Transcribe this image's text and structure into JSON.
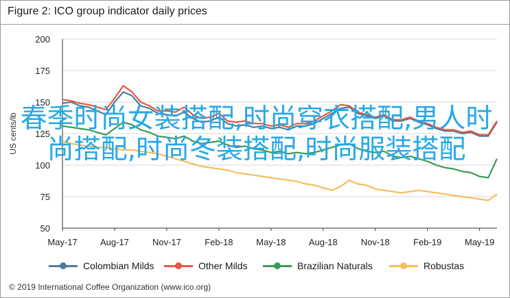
{
  "chart_data": {
    "type": "line",
    "title": "Figure 2: ICO group indicator daily prices",
    "ylabel": "US cents/lb",
    "xlabel": "",
    "ylim": [
      50,
      200
    ],
    "yticks": [
      50,
      75,
      100,
      125,
      150,
      175,
      200
    ],
    "x_ticks": [
      "May-17",
      "Aug-17",
      "Nov-17",
      "Feb-18",
      "May-18",
      "Aug-18",
      "Nov-18",
      "Feb-19",
      "May-19"
    ],
    "grid": true,
    "legend_position": "bottom",
    "series": [
      {
        "name": "Colombian Milds",
        "color": "#4a7ca3",
        "x": [
          0,
          0.5,
          1,
          1.5,
          2,
          2.5,
          3,
          3.5,
          4,
          4.5,
          5,
          5.5,
          6,
          6.5,
          7,
          7.5,
          8,
          8.5,
          9,
          9.5,
          10,
          10.5,
          11,
          11.5,
          12,
          12.5,
          13,
          13.5,
          14,
          14.5,
          15,
          15.5,
          16,
          16.5,
          17,
          17.5,
          18,
          18.5,
          19,
          19.5,
          20,
          20.5,
          21,
          21.5,
          22,
          22.5,
          23,
          23.5,
          24,
          24.5,
          25
        ],
        "values": [
          149,
          150,
          147,
          146,
          143,
          140,
          150,
          158,
          155,
          147,
          145,
          141,
          140,
          139,
          142,
          137,
          134,
          135,
          138,
          133,
          131,
          132,
          130,
          131,
          129,
          130,
          128,
          131,
          131,
          133,
          137,
          141,
          145,
          146,
          141,
          139,
          137,
          139,
          135,
          135,
          137,
          134,
          132,
          129,
          127,
          127,
          125,
          126,
          123,
          123,
          134
        ]
      },
      {
        "name": "Other Milds",
        "color": "#e8573f",
        "x": [
          0,
          0.5,
          1,
          1.5,
          2,
          2.5,
          3,
          3.5,
          4,
          4.5,
          5,
          5.5,
          6,
          6.5,
          7,
          7.5,
          8,
          8.5,
          9,
          9.5,
          10,
          10.5,
          11,
          11.5,
          12,
          12.5,
          13,
          13.5,
          14,
          14.5,
          15,
          15.5,
          16,
          16.5,
          17,
          17.5,
          18,
          18.5,
          19,
          19.5,
          20,
          20.5,
          21,
          21.5,
          22,
          22.5,
          23,
          23.5,
          24,
          24.5,
          25
        ],
        "values": [
          152,
          151,
          149,
          148,
          146,
          144,
          153,
          163,
          158,
          150,
          147,
          143,
          143,
          142,
          146,
          140,
          137,
          138,
          141,
          135,
          134,
          135,
          133,
          133,
          131,
          132,
          130,
          133,
          133,
          135,
          139,
          143,
          148,
          147,
          142,
          140,
          138,
          140,
          136,
          136,
          138,
          135,
          133,
          130,
          128,
          128,
          126,
          127,
          124,
          124,
          135
        ]
      },
      {
        "name": "Brazilian Naturals",
        "color": "#3a9b55",
        "x": [
          0,
          0.5,
          1,
          1.5,
          2,
          2.5,
          3,
          3.5,
          4,
          4.5,
          5,
          5.5,
          6,
          6.5,
          7,
          7.5,
          8,
          8.5,
          9,
          9.5,
          10,
          10.5,
          11,
          11.5,
          12,
          12.5,
          13,
          13.5,
          14,
          14.5,
          15,
          15.5,
          16,
          16.5,
          17,
          17.5,
          18,
          18.5,
          19,
          19.5,
          20,
          20.5,
          21,
          21.5,
          22,
          22.5,
          23,
          23.5,
          24,
          24.5,
          25
        ],
        "values": [
          131,
          130,
          129,
          128,
          126,
          124,
          129,
          134,
          132,
          128,
          126,
          123,
          122,
          121,
          123,
          119,
          117,
          118,
          119,
          116,
          114,
          115,
          113,
          112,
          110,
          111,
          109,
          110,
          109,
          110,
          112,
          114,
          116,
          117,
          113,
          111,
          110,
          111,
          107,
          106,
          107,
          105,
          103,
          100,
          98,
          97,
          95,
          94,
          91,
          90,
          105
        ]
      },
      {
        "name": "Robustas",
        "color": "#f7bd5c",
        "x": [
          0,
          0.5,
          1,
          1.5,
          2,
          2.5,
          3,
          3.5,
          4,
          4.5,
          5,
          5.5,
          6,
          6.5,
          7,
          7.5,
          8,
          8.5,
          9,
          9.5,
          10,
          10.5,
          11,
          11.5,
          12,
          12.5,
          13,
          13.5,
          14,
          14.5,
          15,
          15.5,
          16,
          16.5,
          17,
          17.5,
          18,
          18.5,
          19,
          19.5,
          20,
          20.5,
          21,
          21.5,
          22,
          22.5,
          23,
          23.5,
          24,
          24.5,
          25
        ],
        "values": [
          119,
          117,
          116,
          115,
          114,
          114,
          113,
          112,
          112,
          111,
          110,
          109,
          107,
          105,
          103,
          101,
          99,
          98,
          97,
          96,
          94,
          93,
          92,
          91,
          90,
          89,
          88,
          87,
          85,
          84,
          82,
          80,
          83,
          88,
          85,
          84,
          81,
          80,
          79,
          78,
          79,
          80,
          79,
          78,
          77,
          76,
          75,
          74,
          73,
          72,
          77
        ]
      }
    ]
  },
  "source": "© 2019 International Coffee Organization (www.ico.org)",
  "overlay_text": "春季时尚女装搭配,时尚穿衣搭配,男人时尚搭配,时尚冬装搭配,时尚服装搭配"
}
